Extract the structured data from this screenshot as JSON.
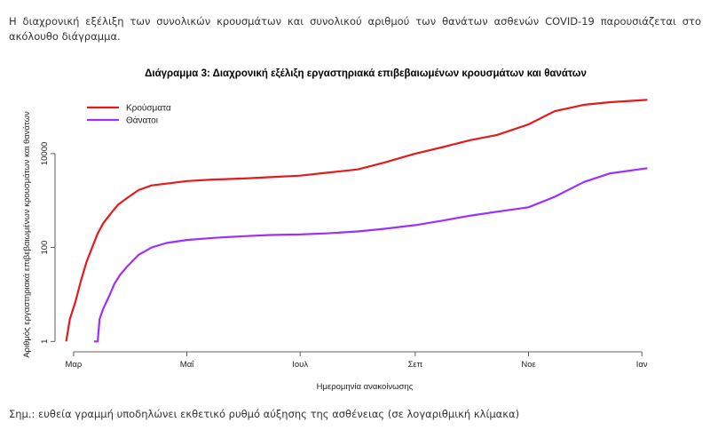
{
  "intro_text": "Η διαχρονική εξέλιξη των συνολικών κρουσμάτων και συνολικού αριθμού των θανάτων ασθενών COVID-19 παρουσιάζεται στο ακόλουθο διάγραμμα.",
  "note_text": "Σημ.: ευθεία γραμμή υποδηλώνει εκθετικό ρυθμό αύξησης της ασθένειας (σε λογαριθμική κλίμακα)",
  "chart_data": {
    "type": "line",
    "title": "Διάγραμμα 3: Διαχρονική εξέλιξη εργαστηριακά επιβεβαιωμένων κρουσμάτων και θανάτων",
    "xlabel": "Ημερομηνία ανακοίνωσης",
    "ylabel": "Αριθμός εργαστηριακά επιβεβαιωμένων κρουσμάτων και θανάτων",
    "yscale": "log",
    "ylim": [
      0.6,
      220000
    ],
    "xlim": [
      "2020-02-20",
      "2021-01-10"
    ],
    "x_ticks": [
      {
        "date": "2020-03-01",
        "label": "Μαρ"
      },
      {
        "date": "2020-05-01",
        "label": "Μαΐ"
      },
      {
        "date": "2020-07-01",
        "label": "Ιουλ"
      },
      {
        "date": "2020-09-01",
        "label": "Σεπ"
      },
      {
        "date": "2020-11-01",
        "label": "Νοε"
      },
      {
        "date": "2021-01-01",
        "label": "Ιαν"
      }
    ],
    "y_ticks": [
      {
        "value": 1,
        "label": "1"
      },
      {
        "value": 100,
        "label": "100"
      },
      {
        "value": 10000,
        "label": "10000"
      }
    ],
    "legend_position": "top-left",
    "series": [
      {
        "name": "Κρούσματα",
        "color": "#e41a1c",
        "points": [
          [
            "2020-02-26",
            1
          ],
          [
            "2020-02-28",
            3
          ],
          [
            "2020-03-02",
            7
          ],
          [
            "2020-03-05",
            20
          ],
          [
            "2020-03-08",
            50
          ],
          [
            "2020-03-11",
            100
          ],
          [
            "2020-03-14",
            200
          ],
          [
            "2020-03-17",
            330
          ],
          [
            "2020-03-21",
            530
          ],
          [
            "2020-03-25",
            820
          ],
          [
            "2020-03-30",
            1150
          ],
          [
            "2020-04-05",
            1680
          ],
          [
            "2020-04-12",
            2100
          ],
          [
            "2020-04-20",
            2300
          ],
          [
            "2020-05-01",
            2600
          ],
          [
            "2020-05-15",
            2800
          ],
          [
            "2020-06-01",
            2950
          ],
          [
            "2020-06-15",
            3150
          ],
          [
            "2020-07-01",
            3400
          ],
          [
            "2020-07-15",
            3900
          ],
          [
            "2020-08-01",
            4600
          ],
          [
            "2020-08-15",
            6400
          ],
          [
            "2020-09-01",
            10000
          ],
          [
            "2020-09-15",
            13500
          ],
          [
            "2020-10-01",
            19500
          ],
          [
            "2020-10-15",
            25000
          ],
          [
            "2020-11-01",
            42000
          ],
          [
            "2020-11-15",
            80000
          ],
          [
            "2020-12-01",
            110000
          ],
          [
            "2020-12-15",
            125000
          ],
          [
            "2021-01-04",
            140000
          ]
        ]
      },
      {
        "name": "Θάνατοι",
        "color": "#9b30ff",
        "points": [
          [
            "2020-03-12",
            1
          ],
          [
            "2020-03-14",
            1
          ],
          [
            "2020-03-15",
            3
          ],
          [
            "2020-03-17",
            5
          ],
          [
            "2020-03-20",
            9
          ],
          [
            "2020-03-23",
            17
          ],
          [
            "2020-03-26",
            26
          ],
          [
            "2020-03-30",
            40
          ],
          [
            "2020-04-05",
            70
          ],
          [
            "2020-04-12",
            100
          ],
          [
            "2020-04-20",
            125
          ],
          [
            "2020-05-01",
            145
          ],
          [
            "2020-05-15",
            160
          ],
          [
            "2020-06-01",
            175
          ],
          [
            "2020-06-15",
            185
          ],
          [
            "2020-07-01",
            190
          ],
          [
            "2020-07-15",
            200
          ],
          [
            "2020-08-01",
            220
          ],
          [
            "2020-08-15",
            250
          ],
          [
            "2020-09-01",
            300
          ],
          [
            "2020-09-15",
            370
          ],
          [
            "2020-10-01",
            480
          ],
          [
            "2020-10-15",
            580
          ],
          [
            "2020-11-01",
            720
          ],
          [
            "2020-11-15",
            1200
          ],
          [
            "2020-12-01",
            2500
          ],
          [
            "2020-12-15",
            3800
          ],
          [
            "2021-01-04",
            4900
          ]
        ]
      }
    ]
  }
}
